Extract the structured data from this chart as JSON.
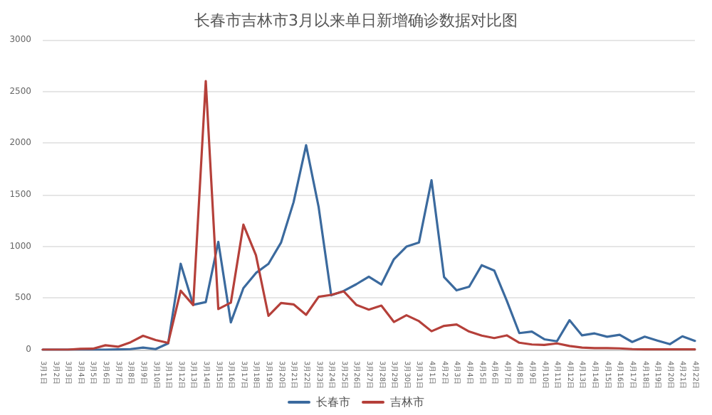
{
  "chart_data": {
    "type": "line",
    "title": "长春市吉林市3月以来单日新增确诊数据对比图",
    "categories": [
      "3月1日",
      "3月2日",
      "3月3日",
      "3月4日",
      "3月5日",
      "3月6日",
      "3月7日",
      "3月8日",
      "3月9日",
      "3月10日",
      "3月11日",
      "3月12日",
      "3月13日",
      "3月14日",
      "3月15日",
      "3月16日",
      "3月17日",
      "3月18日",
      "3月19日",
      "3月20日",
      "3月21日",
      "3月22日",
      "3月23日",
      "3月24日",
      "3月25日",
      "3月26日",
      "3月27日",
      "3月28日",
      "3月29日",
      "3月30日",
      "3月31日",
      "4月1日",
      "4月2日",
      "4月3日",
      "4月4日",
      "4月5日",
      "4月6日",
      "4月7日",
      "4月8日",
      "4月9日",
      "4月10日",
      "4月11日",
      "4月12日",
      "4月13日",
      "4月14日",
      "4月15日",
      "4月16日",
      "4月17日",
      "4月18日",
      "4月19日",
      "4月20日",
      "4月21日",
      "4月22日"
    ],
    "series": [
      {
        "name": "长春市",
        "color": "#3b6a9e",
        "values": [
          0,
          0,
          0,
          0,
          0,
          0,
          2,
          5,
          20,
          5,
          60,
          831,
          434,
          460,
          1044,
          264,
          595,
          742,
          831,
          1036,
          1427,
          1979,
          1380,
          526,
          568,
          633,
          706,
          631,
          875,
          997,
          1038,
          1640,
          703,
          574,
          609,
          817,
          766,
          474,
          160,
          175,
          100,
          81,
          285,
          138,
          157,
          125,
          144,
          74,
          125,
          88,
          53,
          129,
          85
        ]
      },
      {
        "name": "吉林市",
        "color": "#b5403a",
        "values": [
          0,
          0,
          0,
          8,
          9,
          42,
          28,
          71,
          134,
          93,
          65,
          570,
          431,
          2601,
          393,
          455,
          1210,
          914,
          327,
          452,
          438,
          337,
          512,
          530,
          564,
          434,
          387,
          426,
          268,
          333,
          276,
          178,
          230,
          244,
          175,
          136,
          112,
          138,
          67,
          50,
          45,
          60,
          35,
          20,
          15,
          15,
          12,
          5,
          3,
          2,
          2,
          2,
          2
        ]
      }
    ],
    "ylim": [
      0,
      3000
    ],
    "yticks": [
      0,
      500,
      1000,
      1500,
      2000,
      2500,
      3000
    ],
    "grid": "y",
    "legend": "bottom",
    "marker": "none",
    "line_style": "solid"
  }
}
